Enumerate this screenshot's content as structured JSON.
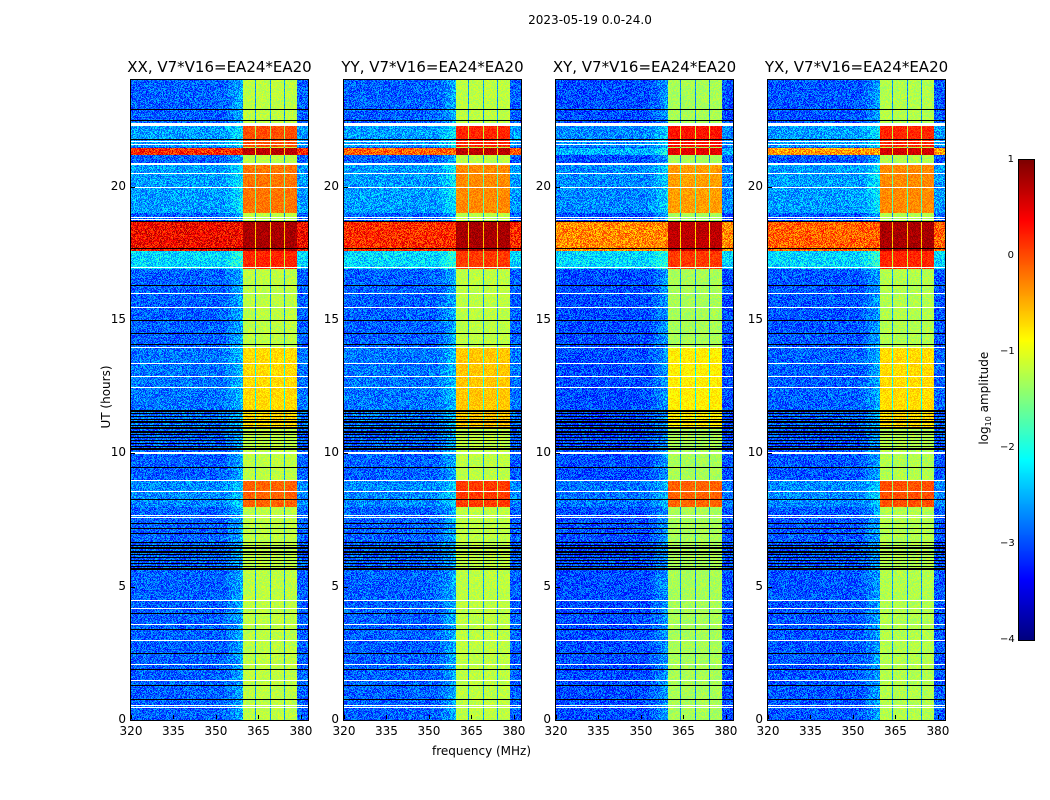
{
  "suptitle": "2023-05-19 0.0-24.0",
  "chart_data": {
    "type": "heatmap",
    "title": "2023-05-19 0.0-24.0",
    "xlabel": "frequency (MHz)",
    "ylabel": "UT (hours)",
    "xlim": [
      320,
      382.5
    ],
    "ylim": [
      0,
      24
    ],
    "x_ticks": [
      320,
      335,
      350,
      365,
      380
    ],
    "y_ticks": [
      0,
      5,
      10,
      15,
      20
    ],
    "colormap": "jet",
    "colorbar": {
      "label_prefix": "log",
      "label_sub": "10",
      "label_suffix": " amplitude",
      "range": [
        -4,
        1
      ],
      "ticks": [
        1,
        0,
        -1,
        -2,
        -3,
        -4
      ],
      "tick_labels": [
        "1",
        "0",
        "−1",
        "−2",
        "−3",
        "−4"
      ]
    },
    "strong_band_mhz": [
      359.5,
      378.6
    ],
    "subband_dividers_mhz": [
      363.8,
      369.0,
      374.0
    ],
    "panels": [
      {
        "title": "XX, V7*V16=EA24*EA20",
        "background_log10": -2.9,
        "band_log10": -1.2,
        "bright_rows": [
          {
            "t0": 21.2,
            "t1": 21.45,
            "bg": 0.2,
            "band": 0.7
          },
          {
            "t0": 17.6,
            "t1": 18.7,
            "bg": 0.4,
            "band": 0.8
          },
          {
            "t0": 16.9,
            "t1": 17.6,
            "bg": -2.3,
            "band": 0.2
          },
          {
            "t0": 19.0,
            "t1": 20.8,
            "bg": -2.6,
            "band": -0.2
          },
          {
            "t0": 21.5,
            "t1": 22.3,
            "bg": -2.6,
            "band": 0.0
          },
          {
            "t0": 8.0,
            "t1": 9.0,
            "bg": -2.7,
            "band": -0.1
          },
          {
            "t0": 11.0,
            "t1": 14.0,
            "bg": -2.8,
            "band": -0.7
          }
        ]
      },
      {
        "title": "YY, V7*V16=EA24*EA20",
        "background_log10": -2.9,
        "band_log10": -1.2,
        "bright_rows": [
          {
            "t0": 21.2,
            "t1": 21.45,
            "bg": -0.1,
            "band": 0.7
          },
          {
            "t0": 17.6,
            "t1": 18.7,
            "bg": 0.2,
            "band": 0.8
          },
          {
            "t0": 16.9,
            "t1": 17.6,
            "bg": -2.3,
            "band": 0.1
          },
          {
            "t0": 19.0,
            "t1": 20.8,
            "bg": -2.6,
            "band": -0.3
          },
          {
            "t0": 21.5,
            "t1": 22.3,
            "bg": -2.6,
            "band": 0.2
          },
          {
            "t0": 8.0,
            "t1": 9.0,
            "bg": -2.7,
            "band": 0.1
          },
          {
            "t0": 11.0,
            "t1": 14.0,
            "bg": -2.8,
            "band": -0.6
          }
        ]
      },
      {
        "title": "XY, V7*V16=EA24*EA20",
        "background_log10": -3.0,
        "band_log10": -1.3,
        "bright_rows": [
          {
            "t0": 21.2,
            "t1": 21.45,
            "bg": -2.5,
            "band": 0.5
          },
          {
            "t0": 17.6,
            "t1": 18.7,
            "bg": -0.3,
            "band": 0.7
          },
          {
            "t0": 16.9,
            "t1": 17.6,
            "bg": -2.3,
            "band": 0.1
          },
          {
            "t0": 19.0,
            "t1": 20.8,
            "bg": -2.7,
            "band": -0.4
          },
          {
            "t0": 21.5,
            "t1": 22.3,
            "bg": -2.7,
            "band": 0.3
          },
          {
            "t0": 8.0,
            "t1": 9.0,
            "bg": -2.8,
            "band": -0.1
          },
          {
            "t0": 11.0,
            "t1": 14.0,
            "bg": -3.0,
            "band": -0.8
          }
        ]
      },
      {
        "title": "YX, V7*V16=EA24*EA20",
        "background_log10": -2.95,
        "band_log10": -1.25,
        "bright_rows": [
          {
            "t0": 21.2,
            "t1": 21.45,
            "bg": -0.4,
            "band": 0.6
          },
          {
            "t0": 17.6,
            "t1": 18.7,
            "bg": -0.1,
            "band": 0.8
          },
          {
            "t0": 16.9,
            "t1": 17.6,
            "bg": -2.3,
            "band": 0.2
          },
          {
            "t0": 19.0,
            "t1": 20.8,
            "bg": -2.6,
            "band": -0.3
          },
          {
            "t0": 21.5,
            "t1": 22.3,
            "bg": -2.6,
            "band": 0.2
          },
          {
            "t0": 8.0,
            "t1": 9.0,
            "bg": -2.7,
            "band": 0.0
          },
          {
            "t0": 11.0,
            "t1": 14.0,
            "bg": -2.9,
            "band": -0.7
          }
        ]
      }
    ],
    "flagged_rows_white": [
      0.5,
      0.55,
      1.5,
      2.1,
      3.0,
      3.6,
      4.2,
      4.5,
      7.6,
      7.7,
      8.6,
      9.0,
      10.0,
      10.05,
      12.5,
      12.9,
      13.4,
      14.0,
      15.5,
      16.0,
      17.0,
      18.8,
      18.85,
      20.0,
      20.5,
      20.85,
      20.9,
      21.6,
      21.7,
      22.3,
      22.35,
      22.4
    ],
    "flagged_rows_black": [
      0.8,
      1.3,
      1.9,
      2.5,
      3.4,
      4.0,
      5.7,
      5.9,
      6.1,
      6.3,
      6.5,
      7.0,
      7.2,
      7.4,
      8.3,
      9.5,
      10.2,
      10.4,
      10.6,
      10.8,
      11.0,
      11.2,
      11.4,
      11.6,
      14.1,
      14.5,
      15.0,
      16.3,
      17.7,
      18.7,
      21.8,
      22.5,
      22.9
    ],
    "dark_segments": [
      [
        5.6,
        6.7
      ],
      [
        10.1,
        11.7
      ]
    ]
  }
}
